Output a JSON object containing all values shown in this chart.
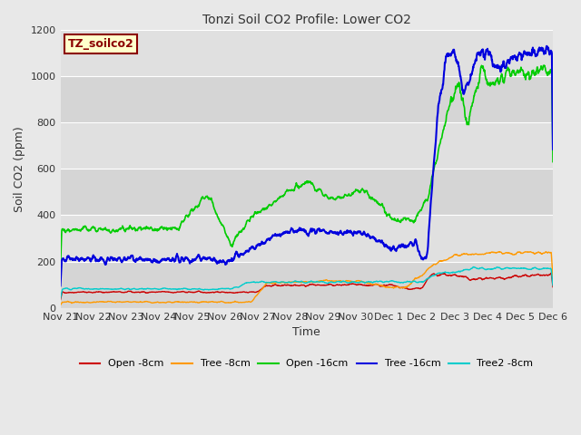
{
  "title": "Tonzi Soil CO2 Profile: Lower CO2",
  "xlabel": "Time",
  "ylabel": "Soil CO2 (ppm)",
  "ylim": [
    0,
    1200
  ],
  "yticks": [
    0,
    200,
    400,
    600,
    800,
    1000,
    1200
  ],
  "fig_bg_color": "#e8e8e8",
  "plot_bg_color": "#e0e0e0",
  "grid_color": "#ffffff",
  "legend_label": "TZ_soilco2",
  "legend_box_color": "#ffffcc",
  "legend_box_edge": "#8B0000",
  "series": {
    "open_8cm": {
      "color": "#cc0000",
      "label": "Open -8cm"
    },
    "tree_8cm": {
      "color": "#ff9900",
      "label": "Tree -8cm"
    },
    "open_16cm": {
      "color": "#00cc00",
      "label": "Open -16cm"
    },
    "tree_16cm": {
      "color": "#0000dd",
      "label": "Tree -16cm"
    },
    "tree2_8cm": {
      "color": "#00cccc",
      "label": "Tree2 -8cm"
    }
  },
  "xtick_labels": [
    "Nov 21",
    "Nov 22",
    "Nov 23",
    "Nov 24",
    "Nov 25",
    "Nov 26",
    "Nov 27",
    "Nov 28",
    "Nov 29",
    "Nov 30",
    "Dec 1",
    "Dec 2",
    "Dec 3",
    "Dec 4",
    "Dec 5",
    "Dec 6"
  ],
  "n_days": 15,
  "seed": 42
}
